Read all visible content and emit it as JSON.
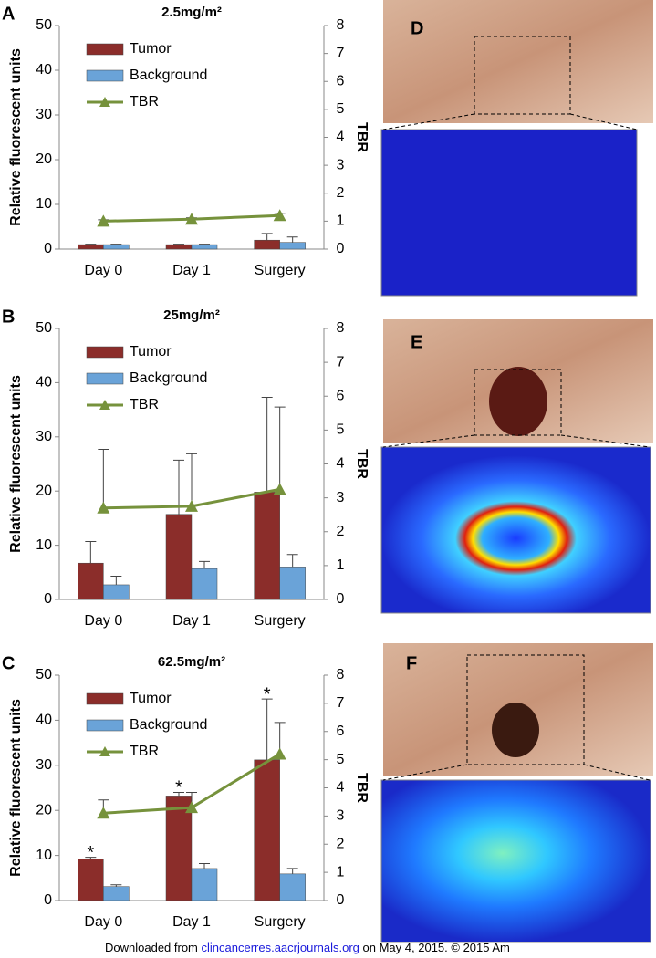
{
  "chart_data": [
    {
      "type": "bar",
      "panel": "A",
      "title": "2.5mg/m²",
      "y_label": "Relative fluorescent units",
      "y2_label": "TBR",
      "categories": [
        "Day 0",
        "Day 1",
        "Surgery"
      ],
      "series": [
        {
          "name": "Tumor",
          "color": "#8b2d2a",
          "values": [
            1,
            1,
            2
          ],
          "errors": [
            0.1,
            0.1,
            1.5
          ]
        },
        {
          "name": "Background",
          "color": "#6aa3d8",
          "values": [
            1,
            1,
            1.5
          ],
          "errors": [
            0.1,
            0.1,
            1.2
          ]
        },
        {
          "name": "TBR",
          "color": "#76923c",
          "axis": "y2",
          "values": [
            1.0,
            1.07,
            1.2
          ],
          "errors": [
            0.05,
            0.05,
            0.08
          ]
        }
      ],
      "ylim": [
        0,
        50
      ],
      "yticks": [
        0,
        10,
        20,
        30,
        40,
        50
      ],
      "y2lim": [
        0,
        8
      ],
      "y2ticks": [
        0,
        1,
        2,
        3,
        4,
        5,
        6,
        7,
        8
      ]
    },
    {
      "type": "bar",
      "panel": "B",
      "title": "25mg/m²",
      "y_label": "Relative fluorescent units",
      "y2_label": "TBR",
      "categories": [
        "Day 0",
        "Day 1",
        "Surgery"
      ],
      "series": [
        {
          "name": "Tumor",
          "color": "#8b2d2a",
          "values": [
            6.7,
            15.7,
            19.8
          ],
          "errors": [
            4,
            10,
            17.5
          ]
        },
        {
          "name": "Background",
          "color": "#6aa3d8",
          "values": [
            2.7,
            5.7,
            6
          ],
          "errors": [
            1.6,
            1.3,
            2.3
          ]
        },
        {
          "name": "TBR",
          "color": "#76923c",
          "axis": "y2",
          "values": [
            2.7,
            2.75,
            3.25
          ],
          "errors": [
            1.73,
            1.55,
            2.43
          ]
        }
      ],
      "ylim": [
        0,
        50
      ],
      "yticks": [
        0,
        10,
        20,
        30,
        40,
        50
      ],
      "y2lim": [
        0,
        8
      ],
      "y2ticks": [
        0,
        1,
        2,
        3,
        4,
        5,
        6,
        7,
        8
      ]
    },
    {
      "type": "bar",
      "panel": "C",
      "title": "62.5mg/m²",
      "y_label": "Relative fluorescent units",
      "y2_label": "TBR",
      "categories": [
        "Day 0",
        "Day 1",
        "Surgery"
      ],
      "series": [
        {
          "name": "Tumor",
          "color": "#8b2d2a",
          "values": [
            9.2,
            23.2,
            31.2
          ],
          "errors": [
            0.4,
            0.8,
            13.5
          ],
          "annotations": [
            "*",
            "*",
            "*"
          ]
        },
        {
          "name": "Background",
          "color": "#6aa3d8",
          "values": [
            3.1,
            7.1,
            5.9
          ],
          "errors": [
            0.4,
            1.1,
            1.2
          ]
        },
        {
          "name": "TBR",
          "color": "#76923c",
          "axis": "y2",
          "values": [
            3.1,
            3.3,
            5.2
          ],
          "errors": [
            0.47,
            0.54,
            1.12
          ]
        }
      ],
      "ylim": [
        0,
        50
      ],
      "yticks": [
        0,
        10,
        20,
        30,
        40,
        50
      ],
      "y2lim": [
        0,
        8
      ],
      "y2ticks": [
        0,
        1,
        2,
        3,
        4,
        5,
        6,
        7,
        8
      ]
    }
  ],
  "images": [
    {
      "label": "D"
    },
    {
      "label": "E"
    },
    {
      "label": "F"
    }
  ],
  "footer": {
    "prefix": "Downloaded from ",
    "link": "clincancerres.aacrjournals.org",
    "suffix": " on May 4, 2015. © 2015 Am"
  }
}
